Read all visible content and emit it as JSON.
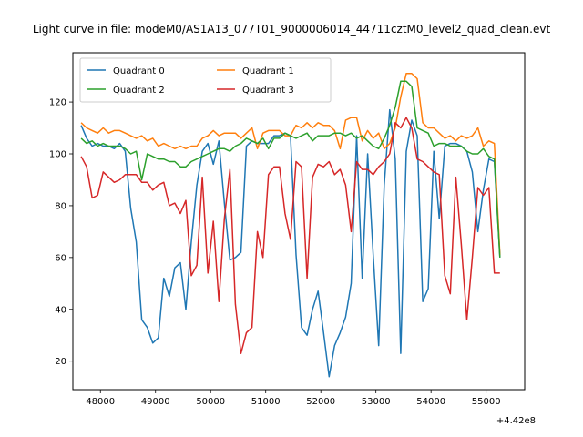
{
  "chart_data": {
    "type": "line",
    "title": "Light curve in file: modeM0/AS1A13_077T01_9000006014_44711cztM0_level2_quad_clean.evt",
    "xlabel": "",
    "ylabel": "",
    "x_offset_label": "+4.42e8",
    "xlim": [
      47500,
      55700
    ],
    "ylim": [
      9,
      139
    ],
    "xticks": [
      48000,
      49000,
      50000,
      51000,
      52000,
      53000,
      54000,
      55000
    ],
    "xtick_labels": [
      "48000",
      "49000",
      "50000",
      "51000",
      "52000",
      "53000",
      "54000",
      "55000"
    ],
    "yticks": [
      20,
      40,
      60,
      80,
      100,
      120
    ],
    "ytick_labels": [
      "20",
      "40",
      "60",
      "80",
      "100",
      "120"
    ],
    "grid": false,
    "legend_placement": "top-left",
    "x": [
      47650,
      47750,
      47850,
      47950,
      48050,
      48150,
      48250,
      48350,
      48450,
      48550,
      48650,
      48750,
      48850,
      48950,
      49050,
      49150,
      49250,
      49350,
      49450,
      49550,
      49650,
      49750,
      49850,
      49950,
      50050,
      50150,
      50250,
      50350,
      50450,
      50550,
      50650,
      50750,
      50850,
      50950,
      51050,
      51150,
      51250,
      51350,
      51450,
      51550,
      51650,
      51750,
      51850,
      51950,
      52050,
      52150,
      52250,
      52350,
      52450,
      52550,
      52650,
      52750,
      52850,
      52950,
      53050,
      53150,
      53250,
      53350,
      53450,
      53550,
      53650,
      53750,
      53850,
      53950,
      54050,
      54150,
      54250,
      54350,
      54450,
      54550,
      54650,
      54750,
      54850,
      54950,
      55050,
      55150,
      55250
    ],
    "series": [
      {
        "name": "Quadrant 0",
        "color": "#1f77b4",
        "values": [
          111,
          106,
          103,
          104,
          103,
          103,
          102,
          104,
          101,
          79,
          66,
          36,
          33,
          27,
          29,
          52,
          45,
          56,
          58,
          40,
          66,
          88,
          101,
          104,
          96,
          105,
          81,
          59,
          60,
          62,
          103,
          105,
          104,
          104,
          104,
          107,
          107,
          108,
          107,
          61,
          33,
          30,
          40,
          47,
          31,
          14,
          26,
          31,
          37,
          50,
          107,
          52,
          100,
          61,
          26,
          88,
          117,
          98,
          23,
          101,
          113,
          107,
          43,
          48,
          101,
          75,
          103,
          104,
          104,
          103,
          101,
          93,
          70,
          86,
          98,
          97,
          60
        ]
      },
      {
        "name": "Quadrant 1",
        "color": "#ff7f0e",
        "values": [
          112,
          110,
          109,
          108,
          110,
          108,
          109,
          109,
          108,
          107,
          106,
          107,
          105,
          106,
          103,
          104,
          103,
          102,
          103,
          102,
          103,
          103,
          106,
          107,
          109,
          107,
          108,
          108,
          108,
          106,
          108,
          110,
          102,
          108,
          109,
          109,
          109,
          107,
          107,
          111,
          110,
          112,
          110,
          112,
          111,
          111,
          109,
          102,
          113,
          114,
          114,
          105,
          109,
          106,
          108,
          102,
          104,
          110,
          122,
          131,
          131,
          129,
          112,
          110,
          110,
          108,
          106,
          107,
          105,
          107,
          106,
          107,
          110,
          103,
          105,
          104,
          61
        ]
      },
      {
        "name": "Quadrant 2",
        "color": "#2ca02c",
        "values": [
          106,
          104,
          105,
          103,
          104,
          103,
          103,
          103,
          102,
          100,
          101,
          90,
          100,
          99,
          98,
          98,
          97,
          97,
          95,
          95,
          97,
          98,
          99,
          100,
          101,
          102,
          102,
          101,
          103,
          104,
          106,
          105,
          104,
          106,
          102,
          106,
          106,
          108,
          107,
          106,
          107,
          108,
          105,
          107,
          107,
          107,
          108,
          108,
          107,
          108,
          106,
          107,
          105,
          103,
          102,
          106,
          111,
          118,
          128,
          128,
          126,
          110,
          109,
          108,
          103,
          104,
          104,
          103,
          103,
          103,
          101,
          100,
          100,
          102,
          99,
          98,
          60
        ]
      },
      {
        "name": "Quadrant 3",
        "color": "#d62728",
        "values": [
          99,
          95,
          83,
          84,
          93,
          91,
          89,
          90,
          92,
          92,
          92,
          89,
          89,
          86,
          88,
          89,
          80,
          81,
          77,
          82,
          53,
          57,
          91,
          54,
          74,
          43,
          75,
          94,
          42,
          23,
          31,
          33,
          70,
          60,
          92,
          95,
          95,
          77,
          67,
          97,
          95,
          52,
          91,
          96,
          95,
          97,
          92,
          94,
          88,
          70,
          97,
          94,
          94,
          92,
          95,
          97,
          100,
          112,
          110,
          114,
          110,
          98,
          97,
          95,
          93,
          92,
          53,
          46,
          91,
          65,
          36,
          60,
          87,
          84,
          87,
          54,
          54
        ]
      }
    ]
  }
}
